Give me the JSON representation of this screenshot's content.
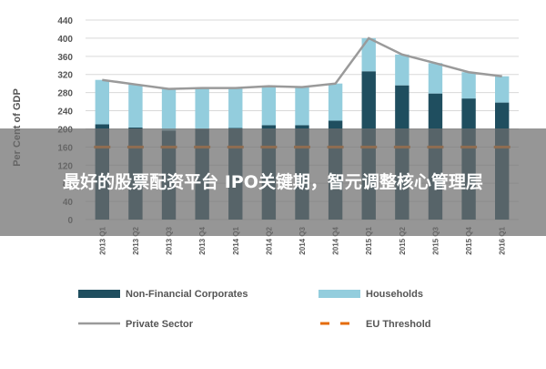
{
  "overlay": {
    "headline": "最好的股票配资平台 IPO关键期，智元调整核心管理层"
  },
  "colors": {
    "non_financial": "#1f4e5f",
    "households": "#93cddd",
    "private_sector": "#9a9a9a",
    "eu_threshold": "#e46c0a"
  },
  "chart_data": {
    "type": "bar",
    "stacked": true,
    "ylabel": "Per Cent of GDP",
    "ylim": [
      0,
      440
    ],
    "yticks": [
      0,
      40,
      80,
      120,
      160,
      200,
      240,
      280,
      320,
      360,
      400,
      440
    ],
    "grid": true,
    "legend_position": "bottom",
    "categories": [
      "2013 Q1",
      "2013 Q2",
      "2013 Q3",
      "2013 Q4",
      "2014 Q1",
      "2014 Q2",
      "2014 Q3",
      "2014 Q4",
      "2015 Q1",
      "2015 Q2",
      "2015 Q3",
      "2015 Q4",
      "2016 Q1"
    ],
    "series": [
      {
        "name": "Non-Financial Corporates",
        "kind": "bar",
        "values": [
          210,
          203,
          196,
          200,
          202,
          208,
          208,
          218,
          327,
          296,
          278,
          267,
          258
        ]
      },
      {
        "name": "Households",
        "kind": "bar",
        "values": [
          98,
          95,
          92,
          90,
          88,
          86,
          84,
          82,
          73,
          68,
          67,
          58,
          58
        ]
      },
      {
        "name": "Private Sector",
        "kind": "line",
        "values": [
          308,
          298,
          288,
          290,
          290,
          294,
          292,
          300,
          400,
          364,
          345,
          325,
          316
        ]
      },
      {
        "name": "EU Threshold",
        "kind": "dashed",
        "values": [
          160,
          160,
          160,
          160,
          160,
          160,
          160,
          160,
          160,
          160,
          160,
          160,
          160
        ]
      }
    ]
  }
}
